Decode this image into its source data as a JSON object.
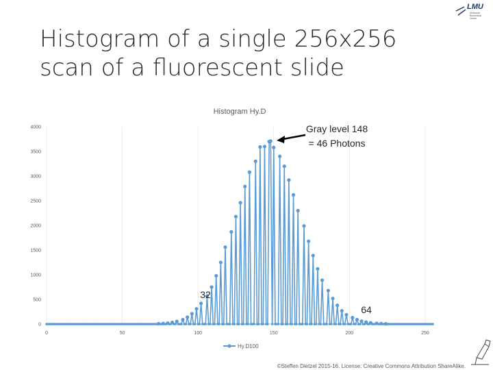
{
  "slide": {
    "title_line1": "Histogram of a single 256x256",
    "title_line2": "scan of a fluorescent slide",
    "footer": "©Steffen Dietzel 2015-16. License: Creative Commons Attribution ShareAlike."
  },
  "logo": {
    "main_text": "LMU",
    "sub_text_1": "Molecular",
    "sub_text_2": "Biomedical",
    "sub_text_3": "Center"
  },
  "colors": {
    "series": "#5b9bd5",
    "axis": "#bfbfbf",
    "grid": "#e0e0e0",
    "text": "#595959"
  },
  "chart_data": {
    "type": "line",
    "title": "Histogram Hy.D",
    "xlabel": "",
    "ylabel": "",
    "xlim": [
      0,
      255
    ],
    "ylim": [
      0,
      4000
    ],
    "xticks": [
      0,
      50,
      100,
      150,
      200,
      250
    ],
    "yticks": [
      0,
      500,
      1000,
      1500,
      2000,
      2500,
      3000,
      3500,
      4000
    ],
    "grid": "vertical",
    "legend_position": "bottom",
    "series": [
      {
        "name": "Hy.D100",
        "comb_offset": 2,
        "comb_step": 3.2,
        "peaks": [
          {
            "x": 74,
            "y": 8
          },
          {
            "x": 77,
            "y": 12
          },
          {
            "x": 80,
            "y": 20
          },
          {
            "x": 83,
            "y": 35
          },
          {
            "x": 86,
            "y": 55
          },
          {
            "x": 90,
            "y": 90
          },
          {
            "x": 93,
            "y": 140
          },
          {
            "x": 96,
            "y": 210
          },
          {
            "x": 99,
            "y": 310
          },
          {
            "x": 102,
            "y": 420
          },
          {
            "x": 106,
            "y": 570
          },
          {
            "x": 109,
            "y": 750
          },
          {
            "x": 112,
            "y": 980
          },
          {
            "x": 115,
            "y": 1250
          },
          {
            "x": 118,
            "y": 1560
          },
          {
            "x": 122,
            "y": 1870
          },
          {
            "x": 125,
            "y": 2180
          },
          {
            "x": 128,
            "y": 2460
          },
          {
            "x": 131,
            "y": 2790
          },
          {
            "x": 134,
            "y": 3080
          },
          {
            "x": 138,
            "y": 3300
          },
          {
            "x": 141,
            "y": 3590
          },
          {
            "x": 144,
            "y": 3600
          },
          {
            "x": 147,
            "y": 3700
          },
          {
            "x": 148,
            "y": 3710
          },
          {
            "x": 150,
            "y": 3580
          },
          {
            "x": 154,
            "y": 3400
          },
          {
            "x": 157,
            "y": 3200
          },
          {
            "x": 160,
            "y": 2920
          },
          {
            "x": 163,
            "y": 2620
          },
          {
            "x": 166,
            "y": 2300
          },
          {
            "x": 170,
            "y": 1990
          },
          {
            "x": 173,
            "y": 1680
          },
          {
            "x": 176,
            "y": 1390
          },
          {
            "x": 179,
            "y": 1120
          },
          {
            "x": 182,
            "y": 890
          },
          {
            "x": 186,
            "y": 680
          },
          {
            "x": 189,
            "y": 520
          },
          {
            "x": 192,
            "y": 380
          },
          {
            "x": 195,
            "y": 270
          },
          {
            "x": 198,
            "y": 190
          },
          {
            "x": 202,
            "y": 130
          },
          {
            "x": 205,
            "y": 90
          },
          {
            "x": 208,
            "y": 60
          },
          {
            "x": 211,
            "y": 40
          },
          {
            "x": 214,
            "y": 26
          },
          {
            "x": 218,
            "y": 16
          },
          {
            "x": 221,
            "y": 10
          },
          {
            "x": 224,
            "y": 6
          }
        ]
      }
    ],
    "annotations": [
      {
        "text_line1": "Gray level 148",
        "text_line2": "= 46 Photons",
        "x": 148,
        "y": 3710
      },
      {
        "text": "32",
        "x": 104,
        "y": 430
      },
      {
        "text": "64",
        "x": 206,
        "y": 200
      }
    ]
  }
}
